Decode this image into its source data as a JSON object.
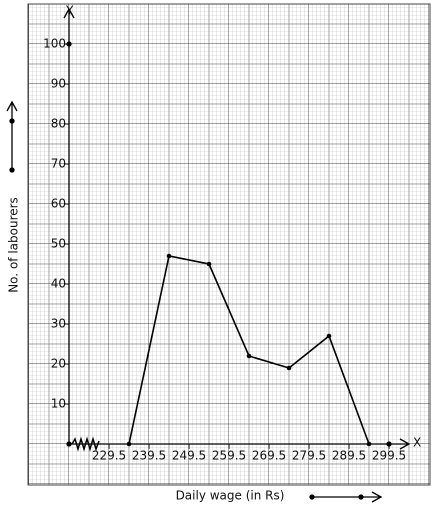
{
  "chart_data": {
    "type": "line",
    "x_label": "Daily wage (in Rs)",
    "y_label": "No. of labourers",
    "x_axis_name": "X",
    "y_axis_name": "Y",
    "x": [
      234.5,
      244.5,
      254.5,
      264.5,
      274.5,
      284.5,
      294.5
    ],
    "series": [
      {
        "color": "#000000",
        "values": [
          0,
          47,
          45,
          22,
          19,
          27,
          0
        ]
      }
    ],
    "xlim": [
      219.5,
      304.75
    ],
    "ylim": [
      0,
      108.5
    ],
    "xticks": [
      229.5,
      239.5,
      249.5,
      259.5,
      269.5,
      279.5,
      289.5,
      299.5
    ],
    "yticks": [
      10,
      20,
      30,
      40,
      50,
      60,
      70,
      80,
      90,
      100
    ],
    "grid": true
  }
}
